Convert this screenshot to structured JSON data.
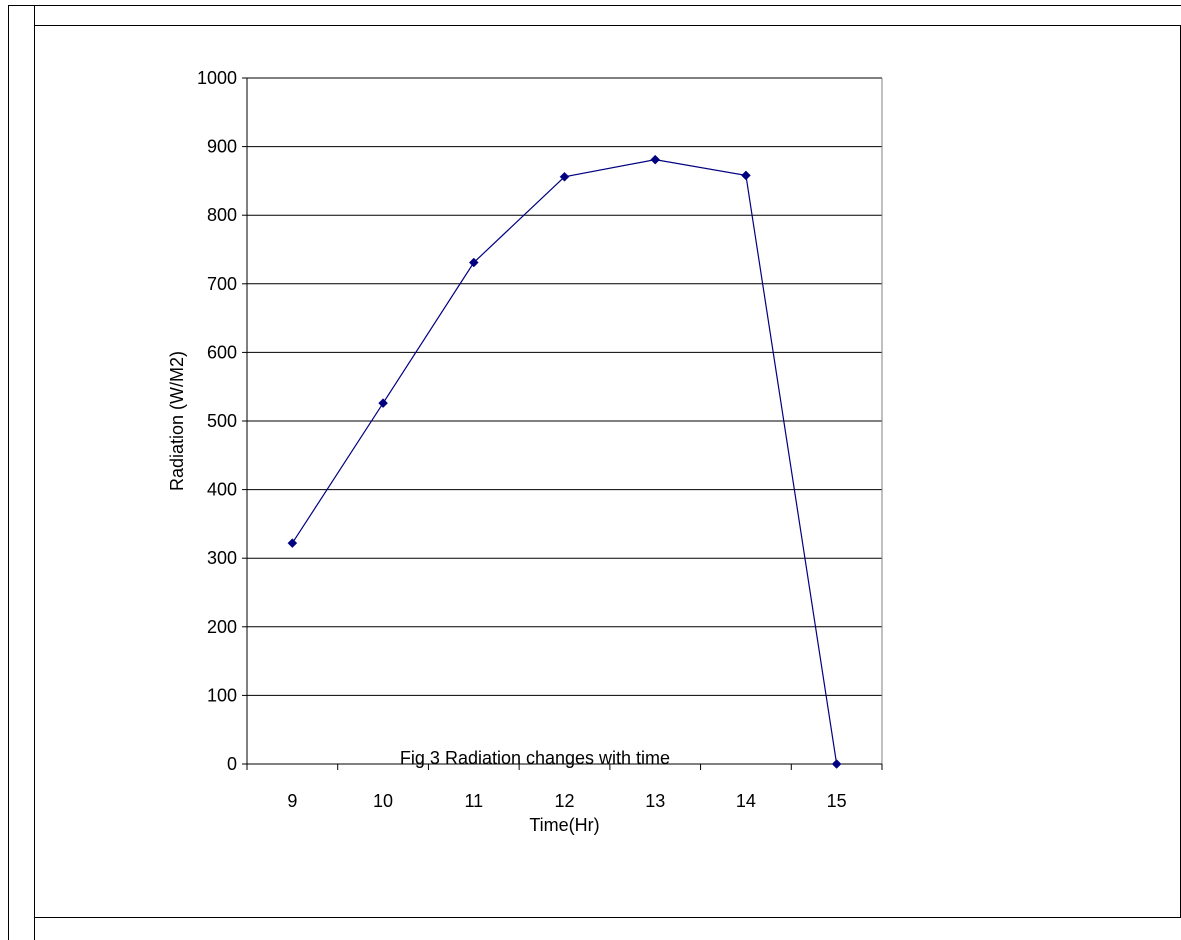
{
  "figure": {
    "caption": "Fig 3 Radiation changes with time"
  },
  "colors": {
    "series": "#000080",
    "grid": "#000000",
    "frame": "#000000"
  },
  "chart_data": {
    "type": "line",
    "title": "",
    "xlabel": "Time(Hr)",
    "ylabel": "Radiation (W/M2)",
    "categories": [
      "9",
      "10",
      "11",
      "12",
      "13",
      "14",
      "15"
    ],
    "ylim": [
      0,
      1000
    ],
    "yticks": [
      0,
      100,
      200,
      300,
      400,
      500,
      600,
      700,
      800,
      900,
      1000
    ],
    "grid": true,
    "legend": "none",
    "marker": "diamond",
    "series": [
      {
        "values": [
          322,
          526,
          731,
          856,
          881,
          858,
          0
        ]
      }
    ]
  }
}
